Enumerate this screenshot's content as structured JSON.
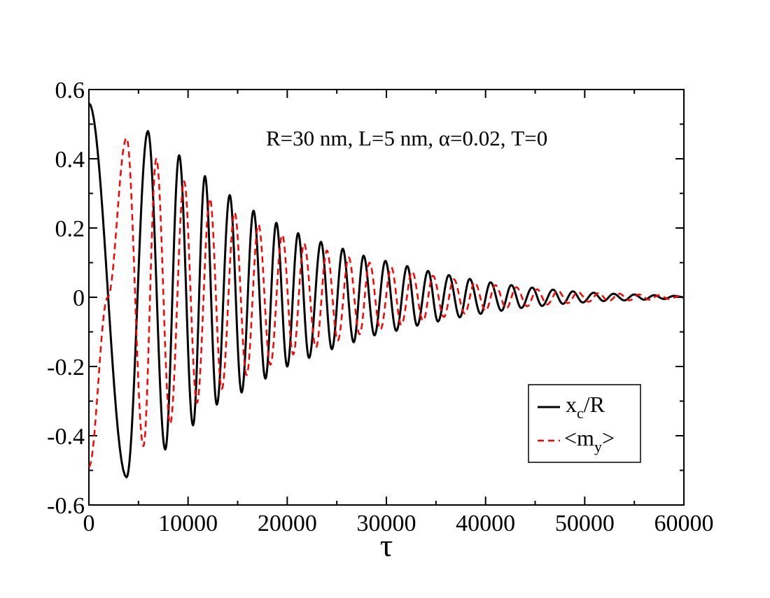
{
  "chart_data": {
    "type": "line",
    "title": "",
    "xlabel": "τ",
    "ylabel": "",
    "xlim": [
      0,
      60000
    ],
    "ylim": [
      -0.6,
      0.6
    ],
    "grid": false,
    "legend_position": "bottom-right",
    "annotation": "R=30 nm, L=5 nm,  α=0.02, T=0",
    "x_ticks": [
      0,
      10000,
      20000,
      30000,
      40000,
      50000,
      60000
    ],
    "x_tick_labels": [
      "0",
      "10000",
      "20000",
      "30000",
      "40000",
      "50000",
      "60000"
    ],
    "y_ticks": [
      0.6,
      0.4,
      0.2,
      0,
      -0.2,
      -0.4,
      -0.6
    ],
    "y_tick_labels": [
      "0.6",
      "0.4",
      "0.2",
      "0",
      "-0.2",
      "-0.4",
      "-0.6"
    ],
    "series": [
      {
        "name": "x_c/R",
        "legend_main": "x",
        "legend_sub": "c",
        "legend_tail": "/R",
        "color": "#000000",
        "style": "solid",
        "x": [
          0,
          3800,
          5950,
          7700,
          9100,
          10500,
          11700,
          12900,
          14200,
          15400,
          16600,
          17800,
          18900,
          20000,
          21100,
          22200,
          23400,
          24500,
          25600,
          26700,
          27700,
          28800,
          29900,
          31000,
          32100,
          33100,
          34200,
          35200,
          36300,
          37400,
          38400,
          39500,
          40500,
          41600,
          42600,
          43600,
          44700,
          45700,
          46800,
          47800,
          48800,
          49800,
          50900,
          51900,
          52900,
          54000,
          55000,
          56000,
          57000,
          58000,
          59000,
          60000
        ],
        "y": [
          0.56,
          -0.52,
          0.48,
          -0.44,
          0.41,
          -0.37,
          0.35,
          -0.31,
          0.295,
          -0.275,
          0.25,
          -0.235,
          0.215,
          -0.2,
          0.185,
          -0.175,
          0.16,
          -0.15,
          0.14,
          -0.13,
          0.12,
          -0.11,
          0.105,
          -0.097,
          0.09,
          -0.082,
          0.076,
          -0.07,
          0.064,
          -0.058,
          0.053,
          -0.048,
          0.043,
          -0.039,
          0.035,
          -0.031,
          0.028,
          -0.025,
          0.022,
          -0.019,
          0.017,
          -0.015,
          0.013,
          -0.011,
          0.01,
          -0.009,
          0.008,
          -0.007,
          0.006,
          -0.005,
          0.004,
          0.0
        ]
      },
      {
        "name": "<m_y>",
        "legend_main": "<m",
        "legend_sub": "y",
        "legend_tail": ">",
        "color": "#ff0000",
        "style": "dashed",
        "x": [
          0,
          1900,
          3800,
          5500,
          6800,
          8200,
          9600,
          10900,
          12200,
          13400,
          14700,
          15900,
          17100,
          18300,
          19500,
          20600,
          21700,
          22900,
          24000,
          25100,
          26200,
          27300,
          28300,
          29400,
          30500,
          31500,
          32600,
          33700,
          34700,
          35800,
          36800,
          37900,
          38900,
          40000,
          41000,
          42100,
          43100,
          44200,
          45200,
          46200,
          47300,
          48300,
          49300,
          50400,
          51400,
          52400,
          53500,
          54500,
          55500,
          56500,
          57500,
          58500,
          59500,
          60000
        ],
        "y": [
          -0.49,
          0.0,
          0.46,
          -0.43,
          0.4,
          -0.365,
          0.335,
          -0.305,
          0.285,
          -0.265,
          0.245,
          -0.225,
          0.21,
          -0.195,
          0.18,
          -0.165,
          0.155,
          -0.145,
          0.135,
          -0.125,
          0.115,
          -0.107,
          0.1,
          -0.093,
          0.086,
          -0.08,
          0.074,
          -0.068,
          0.062,
          -0.057,
          0.052,
          -0.047,
          0.043,
          -0.039,
          0.035,
          -0.032,
          0.029,
          -0.026,
          0.023,
          -0.021,
          0.019,
          -0.017,
          0.015,
          -0.013,
          0.012,
          -0.011,
          0.01,
          -0.009,
          0.008,
          -0.007,
          0.006,
          -0.005,
          0.003,
          0.0
        ]
      }
    ]
  }
}
